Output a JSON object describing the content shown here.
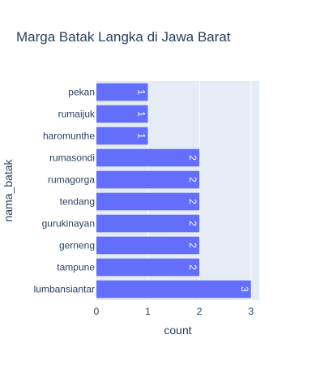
{
  "chart_data": {
    "type": "bar",
    "orientation": "horizontal",
    "title": "Marga Batak Langka di Jawa Barat",
    "xlabel": "count",
    "ylabel": "nama_batak",
    "categories": [
      "pekan",
      "rumaijuk",
      "haromunthe",
      "rumasondi",
      "rumagorga",
      "tendang",
      "gurukinayan",
      "gerneng",
      "tampune",
      "lumbansiantar"
    ],
    "values": [
      1,
      1,
      1,
      2,
      2,
      2,
      2,
      2,
      2,
      3
    ],
    "xlim": [
      0,
      3.16
    ],
    "xticks": [
      0,
      1,
      2,
      3
    ],
    "grid": true,
    "colors": {
      "bar": "#636efa",
      "plot_bg": "#e5ecf6",
      "grid": "#ffffff",
      "text": "#2a3f5f"
    }
  }
}
